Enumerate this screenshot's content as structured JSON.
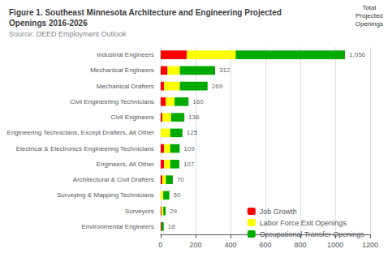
{
  "chart_data": {
    "type": "bar",
    "orientation": "horizontal",
    "stacked": true,
    "title": "Figure 1. Southeast Minnesota Architecture and Engineering Projected\nOpenings 2016-2026",
    "subtitle": "Source: DEED Employment Outlook",
    "categories": [
      "Industrial Engineers",
      "Mechanical Engineers",
      "Mechanical Drafters",
      "Civil Engineering Technicians",
      "Civil Engineers",
      "Engineering Technicians, Except Drafters, All Other",
      "Electrical & Electronics Engineering Technicians",
      "Engineers, All Other",
      "Architectural & Civil Drafters",
      "Surveying & Mapping Technicians",
      "Surveyors",
      "Environmental Engineers"
    ],
    "series": [
      {
        "name": "Job Growth",
        "color": "#FF0000",
        "values": [
          150,
          40,
          20,
          30,
          10,
          0,
          20,
          20,
          10,
          0,
          5,
          5
        ]
      },
      {
        "name": "Labor Force Exit Openings",
        "color": "#FFFF00",
        "values": [
          280,
          70,
          90,
          50,
          50,
          55,
          35,
          35,
          20,
          15,
          10,
          0
        ]
      },
      {
        "name": "Occupational Transfer Openings",
        "color": "#00AA00",
        "values": [
          626,
          202,
          159,
          80,
          76,
          70,
          54,
          52,
          40,
          35,
          14,
          13
        ]
      }
    ],
    "totals": {
      "title": "Total\nProjected\nOpenings",
      "values": [
        1056,
        312,
        269,
        160,
        136,
        125,
        109,
        107,
        70,
        50,
        29,
        18
      ],
      "value_labels": [
        "1,056",
        "312",
        "269",
        "160",
        "136",
        "125",
        "109",
        "107",
        "70",
        "50",
        "29",
        "18"
      ]
    },
    "xlim": [
      0,
      1200
    ],
    "xticks": [
      0,
      200,
      400,
      600,
      800,
      1000,
      1200
    ],
    "grid": true,
    "legend": "lower right"
  }
}
